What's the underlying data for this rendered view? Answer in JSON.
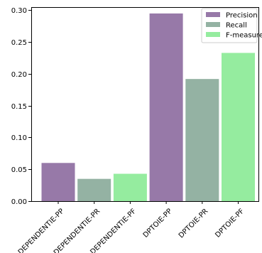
{
  "chart_data": {
    "type": "bar",
    "title": "",
    "xlabel": "",
    "ylabel": "",
    "ylim": [
      0,
      0.305
    ],
    "yticks": [
      "0.00",
      "0.05",
      "0.10",
      "0.15",
      "0.20",
      "0.25",
      "0.30"
    ],
    "ytick_values": [
      0,
      0.05,
      0.1,
      0.15,
      0.2,
      0.25,
      0.3
    ],
    "categories": [
      "DEPENDENTIE-PP",
      "DEPENDENTIE-PR",
      "DEPENDENTIE-PF",
      "DPTOIE-PP",
      "DPTOIE-PR",
      "DPTOIE-PF"
    ],
    "values": [
      0.06,
      0.035,
      0.043,
      0.295,
      0.192,
      0.233
    ],
    "bar_series": [
      "Precision",
      "Recall",
      "F-measure",
      "Precision",
      "Recall",
      "F-measure"
    ],
    "series": [
      {
        "name": "Precision",
        "color": "#9779a8"
      },
      {
        "name": "Recall",
        "color": "#94b2a3"
      },
      {
        "name": "F-measure",
        "color": "#95ec9f"
      }
    ],
    "legend": {
      "position": "top-right"
    },
    "grid": false
  }
}
